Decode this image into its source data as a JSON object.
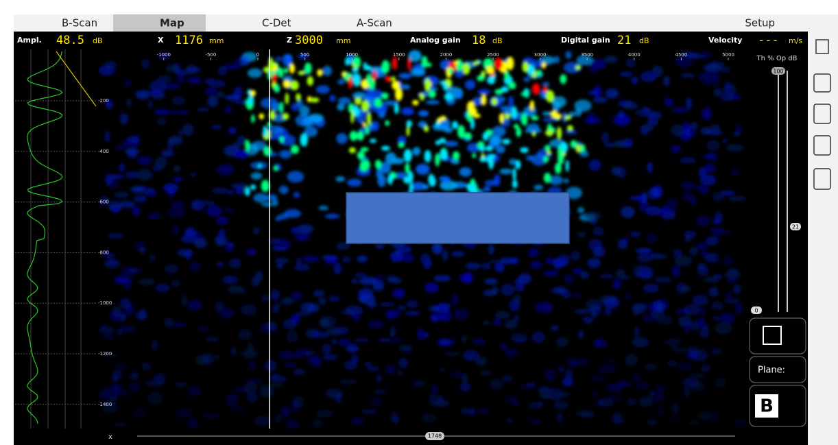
{
  "tabs": [
    "B-Scan",
    "Map",
    "C-Det",
    "A-Scan",
    "Setup"
  ],
  "status": [
    {
      "label": "Ampl.",
      "value": "48.5",
      "unit": "dB"
    },
    {
      "label": "X",
      "value": "1176",
      "unit": "mm"
    },
    {
      "label": "Z",
      "value": "3000",
      "unit": "mm"
    },
    {
      "label": "Analog gain",
      "value": "18",
      "unit": "dB"
    },
    {
      "label": "Digital gain",
      "value": "21",
      "unit": "dB"
    },
    {
      "label": "Velocity",
      "value": "---",
      "unit": "m/s"
    }
  ],
  "map": {
    "xticks": [
      -1000,
      -500,
      0,
      500,
      1000,
      1500,
      2000,
      2500,
      3000,
      3500,
      4000,
      4500,
      5000
    ],
    "yticks": [
      -200,
      -400,
      -600,
      -800,
      -1000,
      -1200,
      -1400
    ]
  },
  "panel": {
    "header": "Th % Op dB",
    "slider_top": "100",
    "slider_mid": "21",
    "slider_bottom": "0",
    "plane_button": "Plane:",
    "view_button": "B"
  },
  "bottom": {
    "axis": "x",
    "position": "1748"
  }
}
